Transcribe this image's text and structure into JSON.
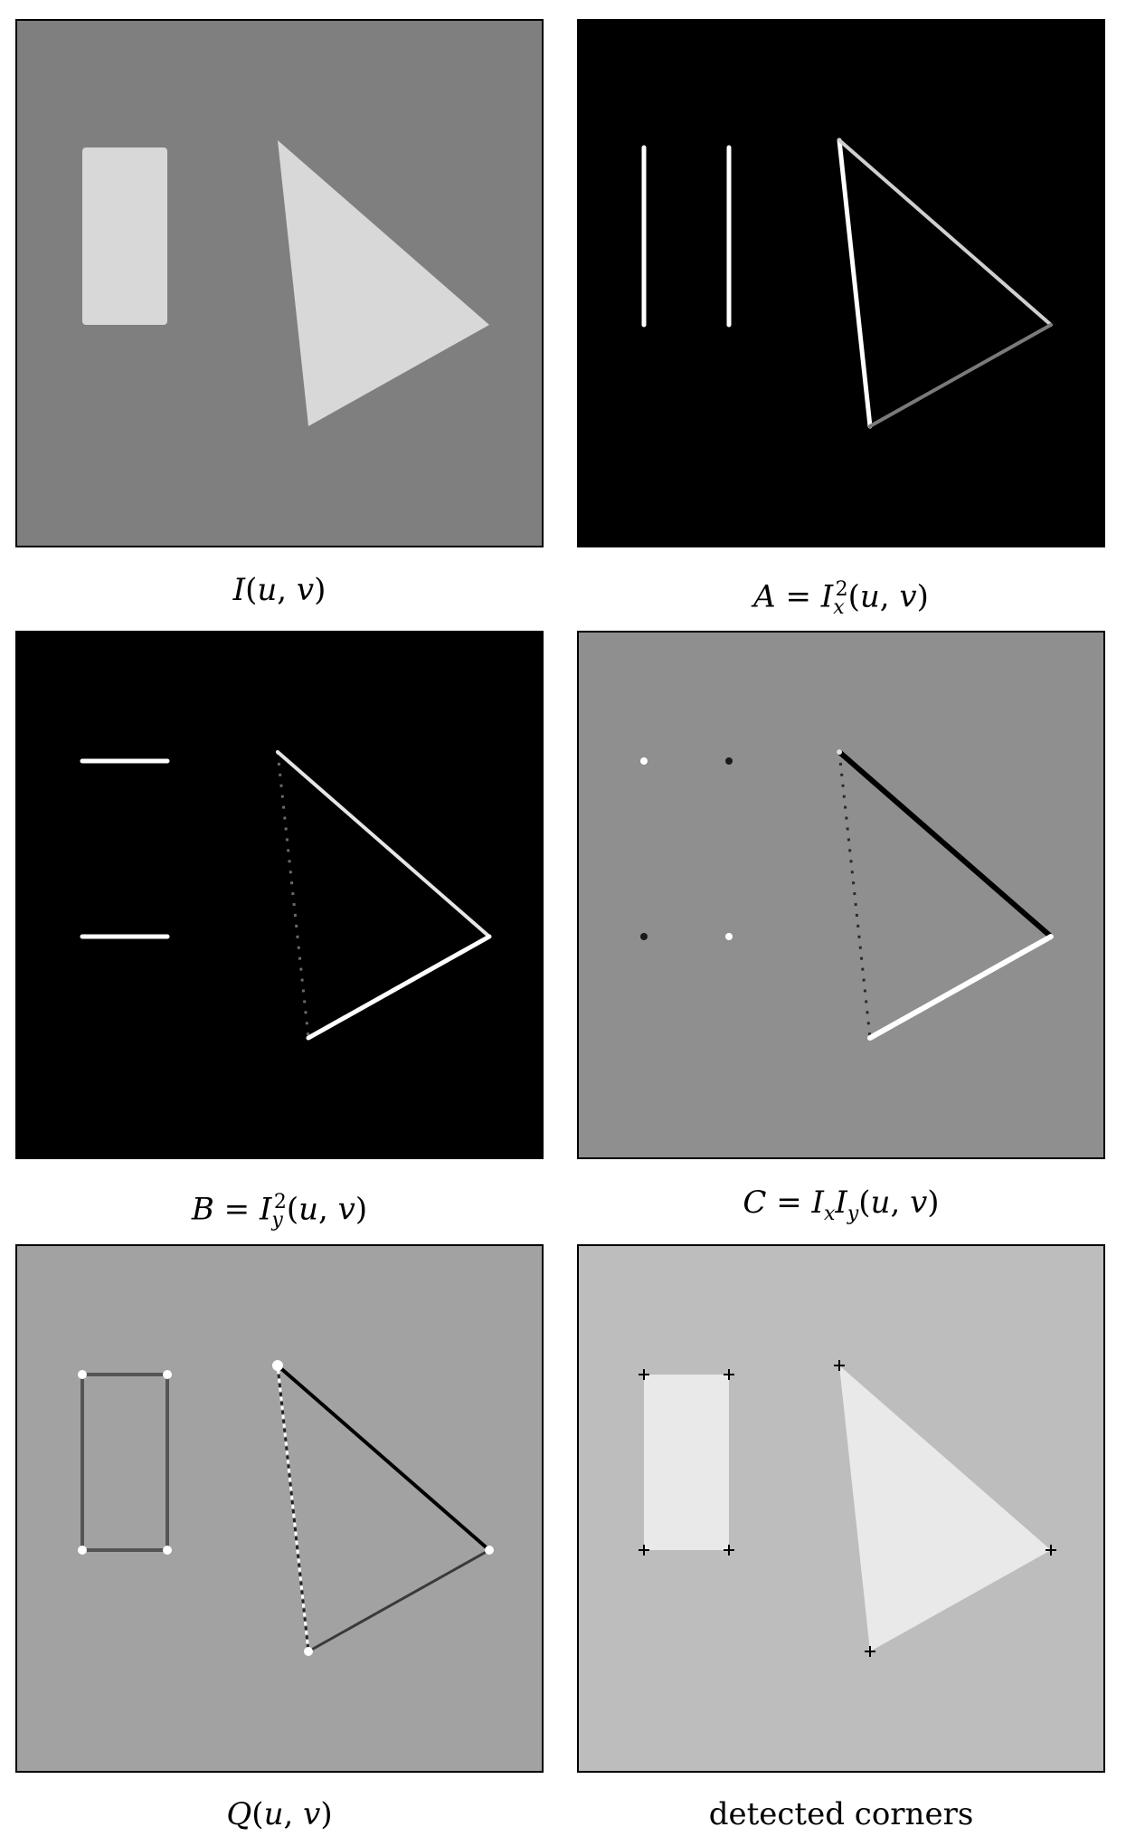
{
  "figure": {
    "panels": [
      {
        "id": "intensity",
        "caption": "I(u, v)"
      },
      {
        "id": "gradient-x-squared",
        "caption": "A = I_x^2(u, v)"
      },
      {
        "id": "gradient-y-squared",
        "caption": "B = I_y^2(u, v)"
      },
      {
        "id": "gradient-product",
        "caption": "C = I_x I_y(u, v)"
      },
      {
        "id": "corner-response",
        "caption": "Q(u, v)"
      },
      {
        "id": "detected-corners",
        "caption": "detected corners"
      }
    ]
  },
  "colors": {
    "mid_gray": "#7f7f7f",
    "black": "#000000",
    "c_background": "#8f8f8f",
    "q_background": "#a2a2a2",
    "corners_background": "#bdbdbd",
    "shape_light": "#d8d8d8",
    "shape_lighter": "#e9e9e9"
  }
}
